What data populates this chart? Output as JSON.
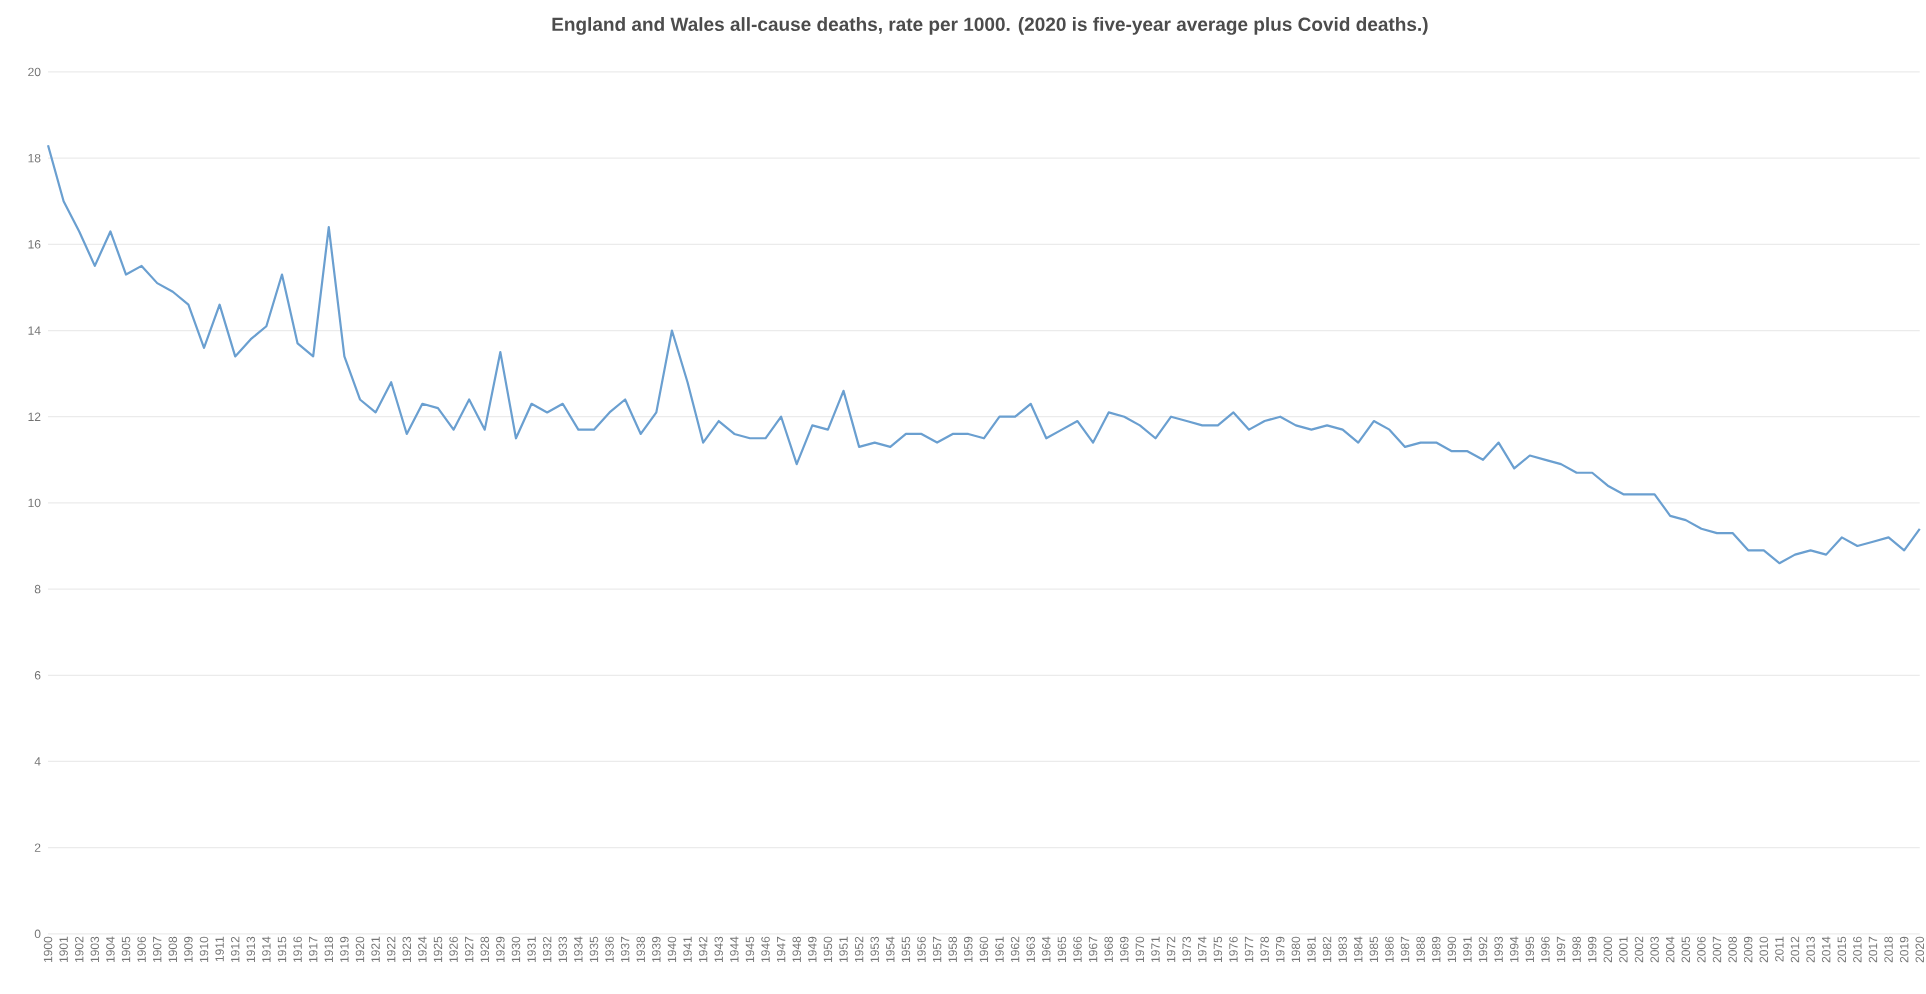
{
  "chart_data": {
    "type": "line",
    "title": "England and Wales all-cause deaths, rate per 1000. (2020 is five-year average plus Covid deaths.)",
    "categories": [
      "1900",
      "1901",
      "1902",
      "1903",
      "1904",
      "1905",
      "1906",
      "1907",
      "1908",
      "1909",
      "1910",
      "1911",
      "1912",
      "1913",
      "1914",
      "1915",
      "1916",
      "1917",
      "1918",
      "1919",
      "1920",
      "1921",
      "1922",
      "1923",
      "1924",
      "1925",
      "1926",
      "1927",
      "1928",
      "1929",
      "1930",
      "1931",
      "1932",
      "1933",
      "1934",
      "1935",
      "1936",
      "1937",
      "1938",
      "1939",
      "1940",
      "1941",
      "1942",
      "1943",
      "1944",
      "1945",
      "1946",
      "1947",
      "1948",
      "1949",
      "1950",
      "1951",
      "1952",
      "1953",
      "1954",
      "1955",
      "1956",
      "1957",
      "1958",
      "1959",
      "1960",
      "1961",
      "1962",
      "1963",
      "1964",
      "1965",
      "1966",
      "1967",
      "1968",
      "1969",
      "1970",
      "1971",
      "1972",
      "1973",
      "1974",
      "1975",
      "1976",
      "1977",
      "1978",
      "1979",
      "1980",
      "1981",
      "1982",
      "1983",
      "1984",
      "1985",
      "1986",
      "1987",
      "1988",
      "1989",
      "1990",
      "1991",
      "1992",
      "1993",
      "1994",
      "1995",
      "1996",
      "1997",
      "1998",
      "1999",
      "2000",
      "2001",
      "2002",
      "2003",
      "2004",
      "2005",
      "2006",
      "2007",
      "2008",
      "2009",
      "2010",
      "2011",
      "2012",
      "2013",
      "2014",
      "2015",
      "2016",
      "2017",
      "2018",
      "2019",
      "2020"
    ],
    "values": [
      18.3,
      17.0,
      16.3,
      15.5,
      16.3,
      15.3,
      15.5,
      15.1,
      14.9,
      14.6,
      13.6,
      14.6,
      13.4,
      13.8,
      14.1,
      15.3,
      13.7,
      13.4,
      16.4,
      13.4,
      12.4,
      12.1,
      12.8,
      11.6,
      12.3,
      12.2,
      11.7,
      12.4,
      11.7,
      13.5,
      11.5,
      12.3,
      12.1,
      12.3,
      11.7,
      11.7,
      12.1,
      12.4,
      11.6,
      12.1,
      14.0,
      12.8,
      11.4,
      11.9,
      11.6,
      11.5,
      11.5,
      12.0,
      10.9,
      11.8,
      11.7,
      12.6,
      11.3,
      11.4,
      11.3,
      11.6,
      11.6,
      11.4,
      11.6,
      11.6,
      11.5,
      12.0,
      12.0,
      12.3,
      11.5,
      11.7,
      11.9,
      11.4,
      12.1,
      12.0,
      11.8,
      11.5,
      12.0,
      11.9,
      11.8,
      11.8,
      12.1,
      11.7,
      11.9,
      12.0,
      11.8,
      11.7,
      11.8,
      11.7,
      11.4,
      11.9,
      11.7,
      11.3,
      11.4,
      11.4,
      11.2,
      11.2,
      11.0,
      11.4,
      10.8,
      11.1,
      11.0,
      10.9,
      10.7,
      10.7,
      10.4,
      10.2,
      10.2,
      10.2,
      9.7,
      9.6,
      9.4,
      9.3,
      9.3,
      8.9,
      8.9,
      8.6,
      8.8,
      8.9,
      8.8,
      9.2,
      9.0,
      9.1,
      9.2,
      8.9,
      9.4
    ],
    "color": "#6a9fd0",
    "ylim": [
      0,
      20
    ],
    "yticks": [
      0,
      2,
      4,
      6,
      8,
      10,
      12,
      14,
      16,
      18,
      20
    ],
    "grid": "y",
    "marker": "none",
    "line_style": "solid"
  }
}
